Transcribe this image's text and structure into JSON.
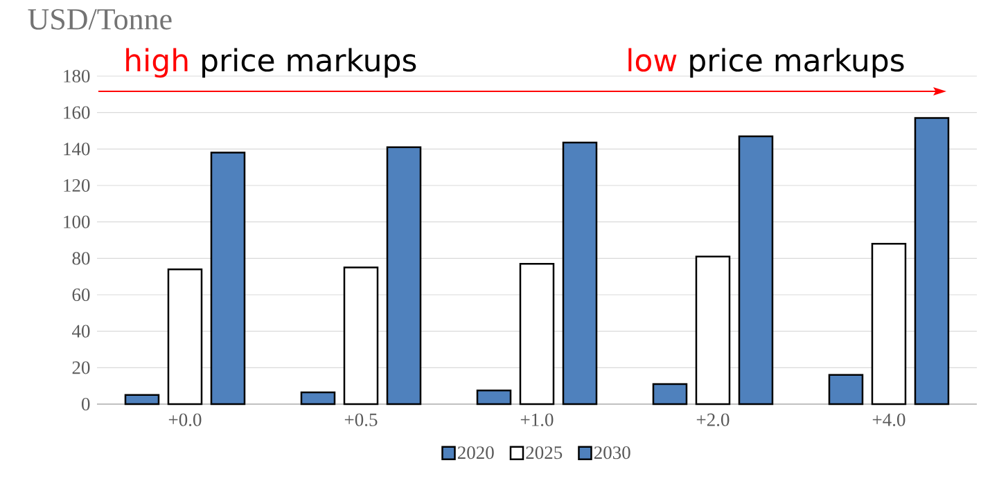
{
  "chart_data": {
    "type": "bar",
    "ylabel": "USD/Tonne",
    "categories": [
      "+0.0",
      "+0.5",
      "+1.0",
      "+2.0",
      "+4.0"
    ],
    "series": [
      {
        "name": "2020",
        "color": "#4f81bd",
        "values": [
          5,
          6.5,
          7.5,
          11,
          16
        ]
      },
      {
        "name": "2025",
        "color": "#ffffff",
        "values": [
          74,
          75,
          77,
          81,
          88
        ]
      },
      {
        "name": "2030",
        "color": "#4f81bd",
        "values": [
          138,
          141,
          143.5,
          147,
          157
        ]
      }
    ],
    "ylim": [
      0,
      180
    ],
    "yticks": [
      0,
      20,
      40,
      60,
      80,
      100,
      120,
      140,
      160,
      180
    ],
    "grid": "y",
    "legend": "bottom",
    "annotations": [
      "high",
      "price markups",
      "low",
      "price markups"
    ]
  }
}
